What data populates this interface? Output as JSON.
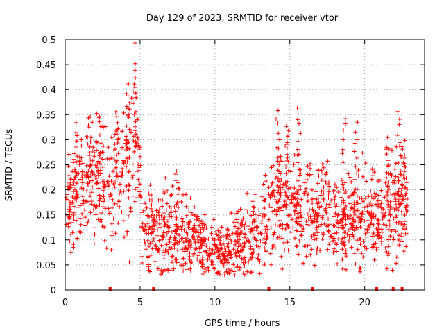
{
  "chart_data": {
    "type": "scatter",
    "title": "Day 129 of 2023, SRMTID for receiver vtor",
    "xlabel": "GPS time / hours",
    "ylabel": "SRMTID / TECUs",
    "xlim": [
      0,
      24
    ],
    "ylim": [
      0,
      0.5
    ],
    "x_ticks": [
      0,
      5,
      10,
      15,
      20
    ],
    "x_tick_labels": [
      "0",
      "5",
      "10",
      "15",
      "20"
    ],
    "y_ticks": [
      0,
      0.05,
      0.1,
      0.15,
      0.2,
      0.25,
      0.3,
      0.35,
      0.4,
      0.45,
      0.5
    ],
    "y_tick_labels": [
      "0",
      "0.05",
      "0.1",
      "0.15",
      "0.2",
      "0.25",
      "0.3",
      "0.35",
      "0.4",
      "0.45",
      "0.5"
    ],
    "grid": true,
    "series_color": "#ff0000",
    "marker": "plus",
    "baseline_markers_x": [
      3.0,
      5.9,
      13.6,
      16.5,
      20.8,
      21.9,
      22.5
    ],
    "envelope": {
      "x": [
        0,
        1,
        2,
        3,
        4,
        4.7,
        5.2,
        6,
        7,
        8,
        9,
        10,
        10.5,
        11,
        12,
        13,
        14,
        15,
        16,
        17,
        18,
        19,
        20,
        21,
        22,
        23
      ],
      "center": [
        0.15,
        0.2,
        0.22,
        0.2,
        0.22,
        0.28,
        0.13,
        0.11,
        0.11,
        0.11,
        0.1,
        0.08,
        0.065,
        0.08,
        0.1,
        0.12,
        0.16,
        0.17,
        0.16,
        0.17,
        0.14,
        0.15,
        0.15,
        0.14,
        0.17,
        0.17
      ],
      "spread": [
        0.05,
        0.07,
        0.08,
        0.07,
        0.08,
        0.11,
        0.05,
        0.05,
        0.05,
        0.05,
        0.04,
        0.03,
        0.03,
        0.035,
        0.045,
        0.05,
        0.07,
        0.07,
        0.06,
        0.05,
        0.05,
        0.06,
        0.06,
        0.05,
        0.07,
        0.05
      ]
    },
    "peaks": [
      {
        "x": 0.7,
        "y": 0.33
      },
      {
        "x": 1.6,
        "y": 0.34
      },
      {
        "x": 2.2,
        "y": 0.355
      },
      {
        "x": 3.4,
        "y": 0.36
      },
      {
        "x": 4.2,
        "y": 0.41
      },
      {
        "x": 4.6,
        "y": 0.45
      },
      {
        "x": 7.5,
        "y": 0.24
      },
      {
        "x": 14.2,
        "y": 0.36
      },
      {
        "x": 14.8,
        "y": 0.33
      },
      {
        "x": 15.6,
        "y": 0.36
      },
      {
        "x": 18.6,
        "y": 0.345
      },
      {
        "x": 19.4,
        "y": 0.33
      },
      {
        "x": 21.5,
        "y": 0.3
      },
      {
        "x": 22.3,
        "y": 0.355
      },
      {
        "x": 22.6,
        "y": 0.3
      }
    ],
    "point_count": 1700
  }
}
